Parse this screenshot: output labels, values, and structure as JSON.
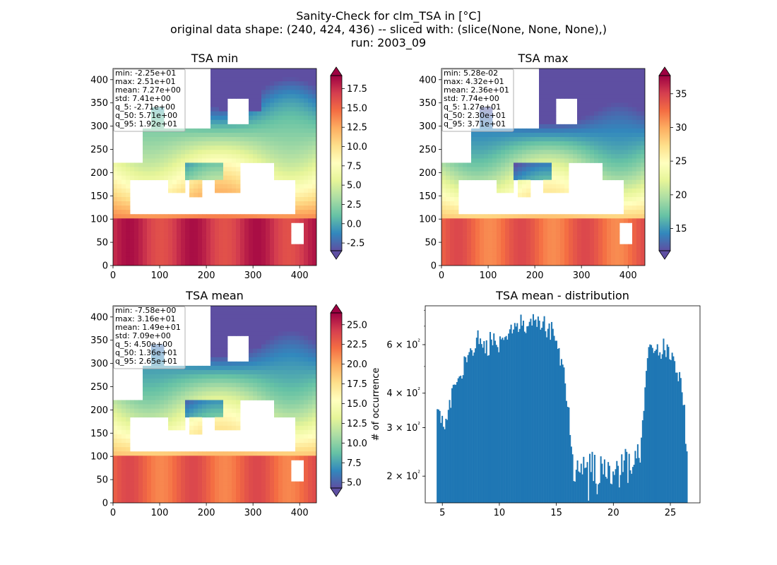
{
  "figure": {
    "title_lines": [
      "Sanity-Check for clm_TSA in [°C]",
      "original data shape: (240, 424, 436) -- sliced with: (slice(None, None, None),)",
      "run: 2003_09"
    ]
  },
  "map_axes": {
    "x_ticks": [
      0,
      100,
      200,
      300,
      400
    ],
    "y_ticks": [
      0,
      50,
      100,
      150,
      200,
      250,
      300,
      350,
      400
    ],
    "xlim": [
      0,
      436
    ],
    "ylim": [
      0,
      424
    ]
  },
  "colormap": {
    "name": "Spectral_r",
    "stops": [
      "#5e4fa2",
      "#3288bd",
      "#66c2a5",
      "#abdda4",
      "#e6f598",
      "#ffffbf",
      "#fee08b",
      "#fdae61",
      "#f46d43",
      "#d53e4f",
      "#9e0142"
    ]
  },
  "panels": [
    {
      "id": "tsa-min",
      "title": "TSA min",
      "stats": [
        "min: -2.25e+01",
        "max: 2.51e+01",
        "mean: 7.27e+00",
        "std: 7.41e+00",
        "q_5: -2.71e+00",
        "q_50: 5.71e+00",
        "q_95: 1.92e+01"
      ],
      "colorbar": {
        "vmin": -3.5,
        "vmax": 19.2,
        "ticks": [
          "-2.5",
          "0.0",
          "2.5",
          "5.0",
          "7.5",
          "10.0",
          "12.5",
          "15.0",
          "17.5"
        ],
        "tick_values": [
          -2.5,
          0,
          2.5,
          5,
          7.5,
          10,
          12.5,
          15,
          17.5
        ]
      }
    },
    {
      "id": "tsa-max",
      "title": "TSA max",
      "stats": [
        "min: 5.28e-02",
        "max: 4.32e+01",
        "mean: 2.36e+01",
        "std: 7.74e+00",
        "q_5: 1.27e+01",
        "q_50: 2.30e+01",
        "q_95: 3.71e+01"
      ],
      "colorbar": {
        "vmin": 11.7,
        "vmax": 37.7,
        "ticks": [
          "15",
          "20",
          "25",
          "30",
          "35"
        ],
        "tick_values": [
          15,
          20,
          25,
          30,
          35
        ]
      }
    },
    {
      "id": "tsa-mean",
      "title": "TSA mean",
      "stats": [
        "min: -7.58e+00",
        "max: 3.16e+01",
        "mean: 1.49e+01",
        "std: 7.09e+00",
        "q_5: 4.50e+00",
        "q_50: 1.36e+01",
        "q_95: 2.65e+01"
      ],
      "colorbar": {
        "vmin": 4.3,
        "vmax": 26.5,
        "ticks": [
          "5.0",
          "7.5",
          "10.0",
          "12.5",
          "15.0",
          "17.5",
          "20.0",
          "22.5",
          "25.0"
        ],
        "tick_values": [
          5,
          7.5,
          10,
          12.5,
          15,
          17.5,
          20,
          22.5,
          25
        ]
      }
    }
  ],
  "chart_data": {
    "type": "bar",
    "title": "TSA mean - distribution",
    "xlabel": "",
    "ylabel": "# of occurrence",
    "y_scale": "log",
    "xlim": [
      3.5,
      27.6
    ],
    "ylim": [
      160,
      830
    ],
    "x_ticks": [
      5,
      10,
      15,
      20,
      25
    ],
    "y_ticks": [
      200,
      300,
      400,
      600
    ],
    "y_tick_labels": [
      "2 × 10²",
      "3 × 10²",
      "4 × 10²",
      "6 × 10²"
    ],
    "bar_color": "#1f77b4",
    "bin_range": [
      4.5,
      26.5
    ],
    "counts": [
      350,
      349,
      345,
      312,
      331,
      302,
      296,
      323,
      320,
      348,
      378,
      354,
      417,
      429,
      430,
      429,
      439,
      453,
      460,
      463,
      452,
      465,
      544,
      540,
      518,
      550,
      564,
      582,
      573,
      547,
      562,
      582,
      636,
      676,
      603,
      632,
      603,
      585,
      618,
      558,
      622,
      547,
      549,
      667,
      626,
      597,
      659,
      620,
      599,
      588,
      563,
      643,
      627,
      636,
      624,
      639,
      645,
      626,
      658,
      682,
      709,
      659,
      681,
      719,
      698,
      718,
      667,
      684,
      771,
      703,
      733,
      669,
      661,
      699,
      701,
      726,
      745,
      704,
      774,
      734,
      740,
      696,
      759,
      733,
      680,
      691,
      728,
      761,
      671,
      638,
      685,
      716,
      625,
      725,
      685,
      646,
      620,
      620,
      579,
      583,
      504,
      532,
      508,
      496,
      434,
      375,
      357,
      355,
      282,
      256,
      240,
      192,
      191,
      211,
      228,
      208,
      206,
      222,
      203,
      235,
      214,
      215,
      225,
      163,
      241,
      207,
      245,
      192,
      239,
      188,
      172,
      187,
      189,
      236,
      222,
      203,
      230,
      199,
      196,
      225,
      218,
      188,
      187,
      208,
      202,
      212,
      227,
      218,
      182,
      202,
      240,
      207,
      228,
      251,
      245,
      189,
      241,
      210,
      204,
      216,
      220,
      247,
      232,
      261,
      233,
      224,
      276,
      319,
      345,
      420,
      482,
      536,
      588,
      601,
      598,
      584,
      560,
      569,
      576,
      602,
      548,
      563,
      533,
      554,
      631,
      573,
      541,
      601,
      589,
      531,
      527,
      561,
      544,
      523,
      475,
      475,
      442,
      477,
      454,
      403,
      362,
      363,
      262,
      246
    ]
  }
}
